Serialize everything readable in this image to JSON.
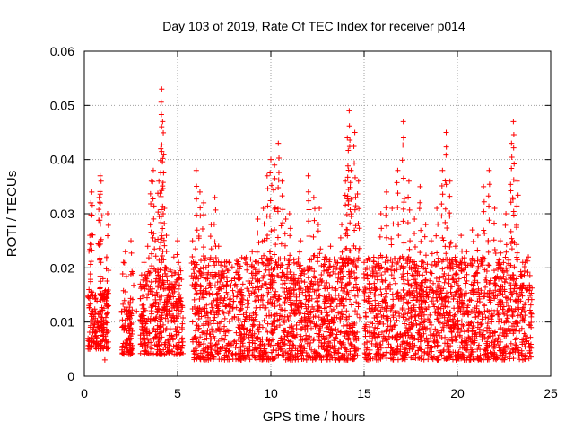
{
  "chart_data": {
    "type": "scatter",
    "title": "Day 103 of 2019, Rate Of TEC Index for receiver p014",
    "xlabel": "GPS time / hours",
    "ylabel": "ROTI / TECUs",
    "xlim": [
      0,
      25
    ],
    "ylim": [
      0,
      0.06
    ],
    "x_ticks": [
      "0",
      "5",
      "10",
      "15",
      "20",
      "25"
    ],
    "y_ticks": [
      "0",
      "0.01",
      "0.02",
      "0.03",
      "0.04",
      "0.05",
      "0.06"
    ],
    "grid": true,
    "marker": "+",
    "color": "#ff0000",
    "sampling_note_hidden": true,
    "series": [
      {
        "points": [
          [
            0.2,
            0.007
          ],
          [
            0.25,
            0.016
          ],
          [
            0.3,
            0.026
          ],
          [
            0.35,
            0.032
          ],
          [
            0.4,
            0.034
          ],
          [
            0.45,
            0.012
          ],
          [
            0.5,
            0.009
          ],
          [
            0.6,
            0.015
          ],
          [
            0.7,
            0.01
          ],
          [
            0.8,
            0.033
          ],
          [
            0.85,
            0.037
          ],
          [
            0.9,
            0.036
          ],
          [
            1.0,
            0.018
          ],
          [
            1.05,
            0.009
          ],
          [
            1.1,
            0.003
          ],
          [
            1.2,
            0.022
          ],
          [
            1.25,
            0.03
          ],
          [
            1.3,
            0.013
          ],
          [
            2.0,
            0.012
          ],
          [
            2.1,
            0.021
          ],
          [
            2.2,
            0.023
          ],
          [
            2.4,
            0.004
          ],
          [
            2.5,
            0.025
          ],
          [
            2.6,
            0.019
          ],
          [
            2.8,
            0.012
          ],
          [
            3.0,
            0.017
          ],
          [
            3.2,
            0.021
          ],
          [
            3.4,
            0.024
          ],
          [
            3.6,
            0.036
          ],
          [
            3.7,
            0.038
          ],
          [
            3.8,
            0.025
          ],
          [
            4.0,
            0.036
          ],
          [
            4.1,
            0.042
          ],
          [
            4.15,
            0.053
          ],
          [
            4.2,
            0.047
          ],
          [
            4.3,
            0.031
          ],
          [
            4.4,
            0.026
          ],
          [
            4.5,
            0.015
          ],
          [
            4.8,
            0.022
          ],
          [
            5.0,
            0.025
          ],
          [
            5.2,
            0.012
          ],
          [
            5.8,
            0.025
          ],
          [
            6.0,
            0.038
          ],
          [
            6.2,
            0.034
          ],
          [
            6.4,
            0.032
          ],
          [
            6.6,
            0.018
          ],
          [
            6.8,
            0.028
          ],
          [
            7.0,
            0.033
          ],
          [
            7.2,
            0.024
          ],
          [
            7.5,
            0.019
          ],
          [
            8.0,
            0.015
          ],
          [
            8.5,
            0.017
          ],
          [
            9.0,
            0.023
          ],
          [
            9.3,
            0.029
          ],
          [
            9.6,
            0.031
          ],
          [
            9.8,
            0.037
          ],
          [
            10.0,
            0.04
          ],
          [
            10.2,
            0.039
          ],
          [
            10.4,
            0.043
          ],
          [
            10.6,
            0.036
          ],
          [
            10.8,
            0.029
          ],
          [
            11.0,
            0.03
          ],
          [
            11.3,
            0.018
          ],
          [
            11.6,
            0.025
          ],
          [
            12.0,
            0.037
          ],
          [
            12.3,
            0.033
          ],
          [
            12.6,
            0.031
          ],
          [
            12.9,
            0.022
          ],
          [
            13.2,
            0.024
          ],
          [
            13.5,
            0.021
          ],
          [
            13.8,
            0.028
          ],
          [
            14.0,
            0.036
          ],
          [
            14.1,
            0.044
          ],
          [
            14.2,
            0.049
          ],
          [
            14.3,
            0.038
          ],
          [
            14.5,
            0.045
          ],
          [
            14.7,
            0.036
          ],
          [
            15.0,
            0.021
          ],
          [
            15.3,
            0.017
          ],
          [
            15.6,
            0.02
          ],
          [
            15.9,
            0.03
          ],
          [
            16.2,
            0.034
          ],
          [
            16.5,
            0.031
          ],
          [
            16.8,
            0.038
          ],
          [
            17.1,
            0.047
          ],
          [
            17.4,
            0.036
          ],
          [
            17.7,
            0.029
          ],
          [
            18.0,
            0.035
          ],
          [
            18.3,
            0.028
          ],
          [
            18.6,
            0.025
          ],
          [
            18.9,
            0.031
          ],
          [
            19.2,
            0.038
          ],
          [
            19.4,
            0.045
          ],
          [
            19.6,
            0.036
          ],
          [
            19.9,
            0.024
          ],
          [
            20.2,
            0.026
          ],
          [
            20.5,
            0.023
          ],
          [
            20.8,
            0.027
          ],
          [
            21.1,
            0.026
          ],
          [
            21.4,
            0.035
          ],
          [
            21.7,
            0.038
          ],
          [
            22.0,
            0.031
          ],
          [
            22.3,
            0.025
          ],
          [
            22.6,
            0.03
          ],
          [
            22.9,
            0.043
          ],
          [
            23.0,
            0.047
          ],
          [
            23.2,
            0.036
          ],
          [
            23.5,
            0.021
          ],
          [
            23.8,
            0.022
          ],
          [
            23.95,
            0.009
          ]
        ]
      }
    ],
    "dense_band": [
      {
        "x_from": 0.2,
        "x_to": 1.3,
        "y_low": 0.005,
        "y_high": 0.016
      },
      {
        "x_from": 2.0,
        "x_to": 2.6,
        "y_low": 0.004,
        "y_high": 0.014
      },
      {
        "x_from": 3.0,
        "x_to": 5.3,
        "y_low": 0.004,
        "y_high": 0.02
      },
      {
        "x_from": 5.8,
        "x_to": 14.7,
        "y_low": 0.003,
        "y_high": 0.022
      },
      {
        "x_from": 15.0,
        "x_to": 24.0,
        "y_low": 0.003,
        "y_high": 0.022
      }
    ]
  }
}
